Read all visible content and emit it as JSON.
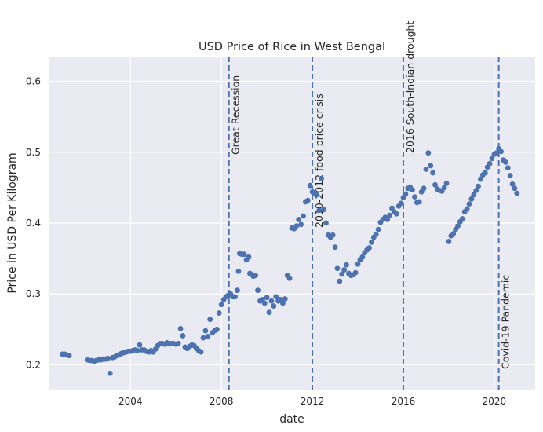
{
  "chart_data": {
    "type": "scatter",
    "title": "USD Price of Rice in West Bengal",
    "xlabel": "date",
    "ylabel": "Price in USD Per Kilogram",
    "x_ticks": [
      "2004",
      "2008",
      "2012",
      "2016",
      "2020"
    ],
    "x_tick_values": [
      2004,
      2008,
      2012,
      2016,
      2020
    ],
    "y_ticks": [
      "0.2",
      "0.3",
      "0.4",
      "0.5",
      "0.6"
    ],
    "y_tick_values": [
      0.2,
      0.3,
      0.4,
      0.5,
      0.6
    ],
    "xlim": [
      2000.4,
      2021.8
    ],
    "ylim": [
      0.165,
      0.635
    ],
    "grid": true,
    "point_color": "#4c72b0",
    "background_color": "#eaeaf2",
    "events": [
      {
        "date": 2008.33,
        "label": "Great Recession"
      },
      {
        "date": 2012.0,
        "label": "2010-2012 food price crisis"
      },
      {
        "date": 2016.0,
        "label": "2016 South-Indian drought"
      },
      {
        "date": 2020.2,
        "label": "Covid-19 Pandemic"
      }
    ],
    "series": [
      {
        "points": [
          [
            2001.0,
            0.215
          ],
          [
            2001.1,
            0.215
          ],
          [
            2001.2,
            0.214
          ],
          [
            2001.3,
            0.213
          ],
          [
            2002.1,
            0.207
          ],
          [
            2002.2,
            0.206
          ],
          [
            2002.3,
            0.206
          ],
          [
            2002.4,
            0.205
          ],
          [
            2002.5,
            0.206
          ],
          [
            2002.6,
            0.207
          ],
          [
            2002.7,
            0.207
          ],
          [
            2002.8,
            0.208
          ],
          [
            2002.9,
            0.208
          ],
          [
            2003.0,
            0.209
          ],
          [
            2003.1,
            0.188
          ],
          [
            2003.2,
            0.21
          ],
          [
            2003.3,
            0.211
          ],
          [
            2003.4,
            0.213
          ],
          [
            2003.5,
            0.214
          ],
          [
            2003.6,
            0.216
          ],
          [
            2003.7,
            0.217
          ],
          [
            2003.8,
            0.218
          ],
          [
            2003.9,
            0.219
          ],
          [
            2004.0,
            0.219
          ],
          [
            2004.1,
            0.22
          ],
          [
            2004.2,
            0.221
          ],
          [
            2004.3,
            0.22
          ],
          [
            2004.4,
            0.228
          ],
          [
            2004.5,
            0.221
          ],
          [
            2004.6,
            0.221
          ],
          [
            2004.7,
            0.219
          ],
          [
            2004.8,
            0.218
          ],
          [
            2004.9,
            0.22
          ],
          [
            2005.0,
            0.218
          ],
          [
            2005.1,
            0.222
          ],
          [
            2005.2,
            0.227
          ],
          [
            2005.3,
            0.23
          ],
          [
            2005.4,
            0.23
          ],
          [
            2005.5,
            0.229
          ],
          [
            2005.6,
            0.231
          ],
          [
            2005.7,
            0.23
          ],
          [
            2005.8,
            0.23
          ],
          [
            2005.9,
            0.23
          ],
          [
            2006.0,
            0.229
          ],
          [
            2006.1,
            0.23
          ],
          [
            2006.2,
            0.251
          ],
          [
            2006.3,
            0.241
          ],
          [
            2006.4,
            0.225
          ],
          [
            2006.5,
            0.223
          ],
          [
            2006.6,
            0.226
          ],
          [
            2006.7,
            0.228
          ],
          [
            2006.8,
            0.227
          ],
          [
            2006.9,
            0.223
          ],
          [
            2007.0,
            0.22
          ],
          [
            2007.1,
            0.218
          ],
          [
            2007.2,
            0.238
          ],
          [
            2007.3,
            0.248
          ],
          [
            2007.4,
            0.24
          ],
          [
            2007.5,
            0.264
          ],
          [
            2007.6,
            0.245
          ],
          [
            2007.7,
            0.248
          ],
          [
            2007.8,
            0.25
          ],
          [
            2007.9,
            0.273
          ],
          [
            2008.0,
            0.285
          ],
          [
            2008.1,
            0.292
          ],
          [
            2008.2,
            0.296
          ],
          [
            2008.3,
            0.298
          ],
          [
            2008.4,
            0.3
          ],
          [
            2008.5,
            0.296
          ],
          [
            2008.6,
            0.296
          ],
          [
            2008.7,
            0.305
          ],
          [
            2008.75,
            0.332
          ],
          [
            2008.8,
            0.357
          ],
          [
            2008.9,
            0.356
          ],
          [
            2009.0,
            0.356
          ],
          [
            2009.1,
            0.348
          ],
          [
            2009.2,
            0.352
          ],
          [
            2009.25,
            0.329
          ],
          [
            2009.3,
            0.328
          ],
          [
            2009.4,
            0.325
          ],
          [
            2009.5,
            0.326
          ],
          [
            2009.6,
            0.305
          ],
          [
            2009.7,
            0.29
          ],
          [
            2009.8,
            0.292
          ],
          [
            2009.9,
            0.287
          ],
          [
            2010.0,
            0.295
          ],
          [
            2010.1,
            0.274
          ],
          [
            2010.2,
            0.29
          ],
          [
            2010.3,
            0.283
          ],
          [
            2010.4,
            0.296
          ],
          [
            2010.5,
            0.29
          ],
          [
            2010.6,
            0.292
          ],
          [
            2010.7,
            0.287
          ],
          [
            2010.8,
            0.293
          ],
          [
            2010.9,
            0.326
          ],
          [
            2011.0,
            0.322
          ],
          [
            2011.1,
            0.393
          ],
          [
            2011.2,
            0.392
          ],
          [
            2011.3,
            0.396
          ],
          [
            2011.4,
            0.405
          ],
          [
            2011.5,
            0.398
          ],
          [
            2011.6,
            0.41
          ],
          [
            2011.7,
            0.43
          ],
          [
            2011.8,
            0.432
          ],
          [
            2011.9,
            0.453
          ],
          [
            2012.0,
            0.444
          ],
          [
            2012.1,
            0.441
          ],
          [
            2012.2,
            0.44
          ],
          [
            2012.3,
            0.418
          ],
          [
            2012.4,
            0.463
          ],
          [
            2012.5,
            0.419
          ],
          [
            2012.6,
            0.4
          ],
          [
            2012.7,
            0.383
          ],
          [
            2012.8,
            0.38
          ],
          [
            2012.9,
            0.383
          ],
          [
            2013.0,
            0.366
          ],
          [
            2013.1,
            0.336
          ],
          [
            2013.2,
            0.318
          ],
          [
            2013.3,
            0.328
          ],
          [
            2013.4,
            0.334
          ],
          [
            2013.5,
            0.341
          ],
          [
            2013.6,
            0.329
          ],
          [
            2013.7,
            0.326
          ],
          [
            2013.8,
            0.327
          ],
          [
            2013.9,
            0.33
          ],
          [
            2014.0,
            0.342
          ],
          [
            2014.1,
            0.348
          ],
          [
            2014.2,
            0.352
          ],
          [
            2014.3,
            0.358
          ],
          [
            2014.4,
            0.362
          ],
          [
            2014.5,
            0.365
          ],
          [
            2014.6,
            0.373
          ],
          [
            2014.7,
            0.38
          ],
          [
            2014.8,
            0.384
          ],
          [
            2014.9,
            0.391
          ],
          [
            2015.0,
            0.401
          ],
          [
            2015.1,
            0.405
          ],
          [
            2015.2,
            0.408
          ],
          [
            2015.3,
            0.405
          ],
          [
            2015.4,
            0.411
          ],
          [
            2015.5,
            0.421
          ],
          [
            2015.6,
            0.416
          ],
          [
            2015.7,
            0.413
          ],
          [
            2015.8,
            0.424
          ],
          [
            2015.9,
            0.428
          ],
          [
            2016.0,
            0.436
          ],
          [
            2016.1,
            0.441
          ],
          [
            2016.2,
            0.449
          ],
          [
            2016.3,
            0.451
          ],
          [
            2016.4,
            0.447
          ],
          [
            2016.5,
            0.437
          ],
          [
            2016.6,
            0.429
          ],
          [
            2016.7,
            0.43
          ],
          [
            2016.8,
            0.444
          ],
          [
            2016.9,
            0.449
          ],
          [
            2017.0,
            0.476
          ],
          [
            2017.1,
            0.499
          ],
          [
            2017.2,
            0.481
          ],
          [
            2017.3,
            0.471
          ],
          [
            2017.4,
            0.454
          ],
          [
            2017.5,
            0.448
          ],
          [
            2017.6,
            0.446
          ],
          [
            2017.7,
            0.445
          ],
          [
            2017.8,
            0.45
          ],
          [
            2017.9,
            0.456
          ],
          [
            2018.0,
            0.374
          ],
          [
            2018.1,
            0.382
          ],
          [
            2018.2,
            0.385
          ],
          [
            2018.3,
            0.391
          ],
          [
            2018.4,
            0.396
          ],
          [
            2018.5,
            0.402
          ],
          [
            2018.6,
            0.406
          ],
          [
            2018.7,
            0.416
          ],
          [
            2018.8,
            0.42
          ],
          [
            2018.9,
            0.427
          ],
          [
            2019.0,
            0.434
          ],
          [
            2019.1,
            0.44
          ],
          [
            2019.2,
            0.446
          ],
          [
            2019.3,
            0.452
          ],
          [
            2019.4,
            0.462
          ],
          [
            2019.5,
            0.468
          ],
          [
            2019.6,
            0.471
          ],
          [
            2019.7,
            0.479
          ],
          [
            2019.8,
            0.484
          ],
          [
            2019.9,
            0.491
          ],
          [
            2020.0,
            0.497
          ],
          [
            2020.1,
            0.499
          ],
          [
            2020.2,
            0.505
          ],
          [
            2020.3,
            0.501
          ],
          [
            2020.4,
            0.489
          ],
          [
            2020.5,
            0.486
          ],
          [
            2020.6,
            0.478
          ],
          [
            2020.7,
            0.467
          ],
          [
            2020.8,
            0.455
          ],
          [
            2020.9,
            0.449
          ],
          [
            2021.0,
            0.442
          ]
        ]
      }
    ]
  }
}
